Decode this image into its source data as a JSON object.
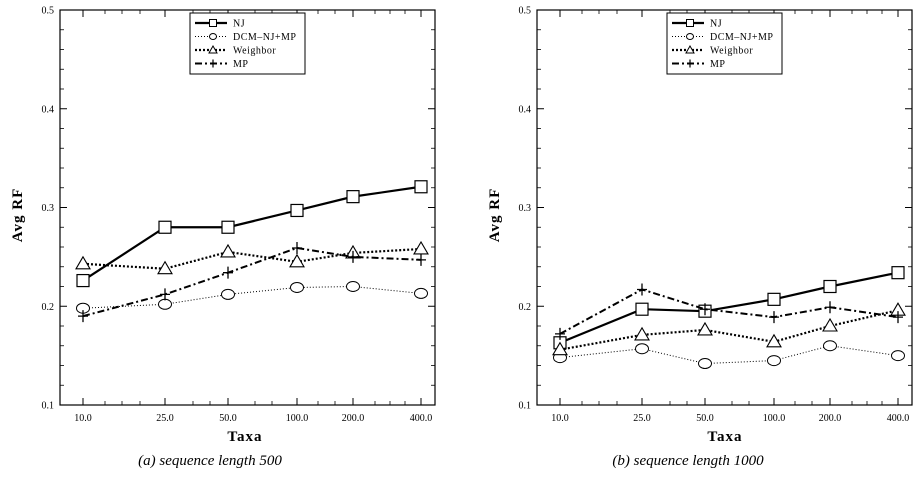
{
  "chart_data": [
    {
      "type": "line",
      "caption": "(a) sequence length 500",
      "xlabel": "Taxa",
      "ylabel": "Avg RF",
      "x": [
        10,
        25,
        50,
        100,
        200,
        400
      ],
      "xticklabels": [
        "10.0",
        "25.0",
        "50.0",
        "100.0",
        "200.0",
        "400.0"
      ],
      "xscale": "log",
      "ylim": [
        0.1,
        0.5
      ],
      "yticklabels": [
        "0.1",
        "0.2",
        "0.3",
        "0.4",
        "0.5"
      ],
      "legend_position": "top-center",
      "series": [
        {
          "name": "NJ",
          "values": [
            0.226,
            0.28,
            0.28,
            0.297,
            0.311,
            0.321
          ]
        },
        {
          "name": "DCM–NJ+MP",
          "values": [
            0.198,
            0.202,
            0.212,
            0.219,
            0.22,
            0.213
          ]
        },
        {
          "name": "Weighbor",
          "values": [
            0.243,
            0.238,
            0.255,
            0.245,
            0.254,
            0.258
          ]
        },
        {
          "name": "MP",
          "values": [
            0.19,
            0.212,
            0.234,
            0.259,
            0.25,
            0.247
          ]
        }
      ]
    },
    {
      "type": "line",
      "caption": "(b) sequence length 1000",
      "xlabel": "Taxa",
      "ylabel": "Avg RF",
      "x": [
        10,
        25,
        50,
        100,
        200,
        400
      ],
      "xticklabels": [
        "10.0",
        "25.0",
        "50.0",
        "100.0",
        "200.0",
        "400.0"
      ],
      "xscale": "log",
      "ylim": [
        0.1,
        0.5
      ],
      "yticklabels": [
        "0.1",
        "0.2",
        "0.3",
        "0.4",
        "0.5"
      ],
      "legend_position": "top-center",
      "series": [
        {
          "name": "NJ",
          "values": [
            0.163,
            0.197,
            0.195,
            0.207,
            0.22,
            0.234
          ]
        },
        {
          "name": "DCM–NJ+MP",
          "values": [
            0.148,
            0.157,
            0.142,
            0.145,
            0.16,
            0.15
          ]
        },
        {
          "name": "Weighbor",
          "values": [
            0.156,
            0.171,
            0.176,
            0.164,
            0.18,
            0.196
          ]
        },
        {
          "name": "MP",
          "values": [
            0.172,
            0.217,
            0.197,
            0.189,
            0.199,
            0.189
          ]
        }
      ]
    }
  ]
}
